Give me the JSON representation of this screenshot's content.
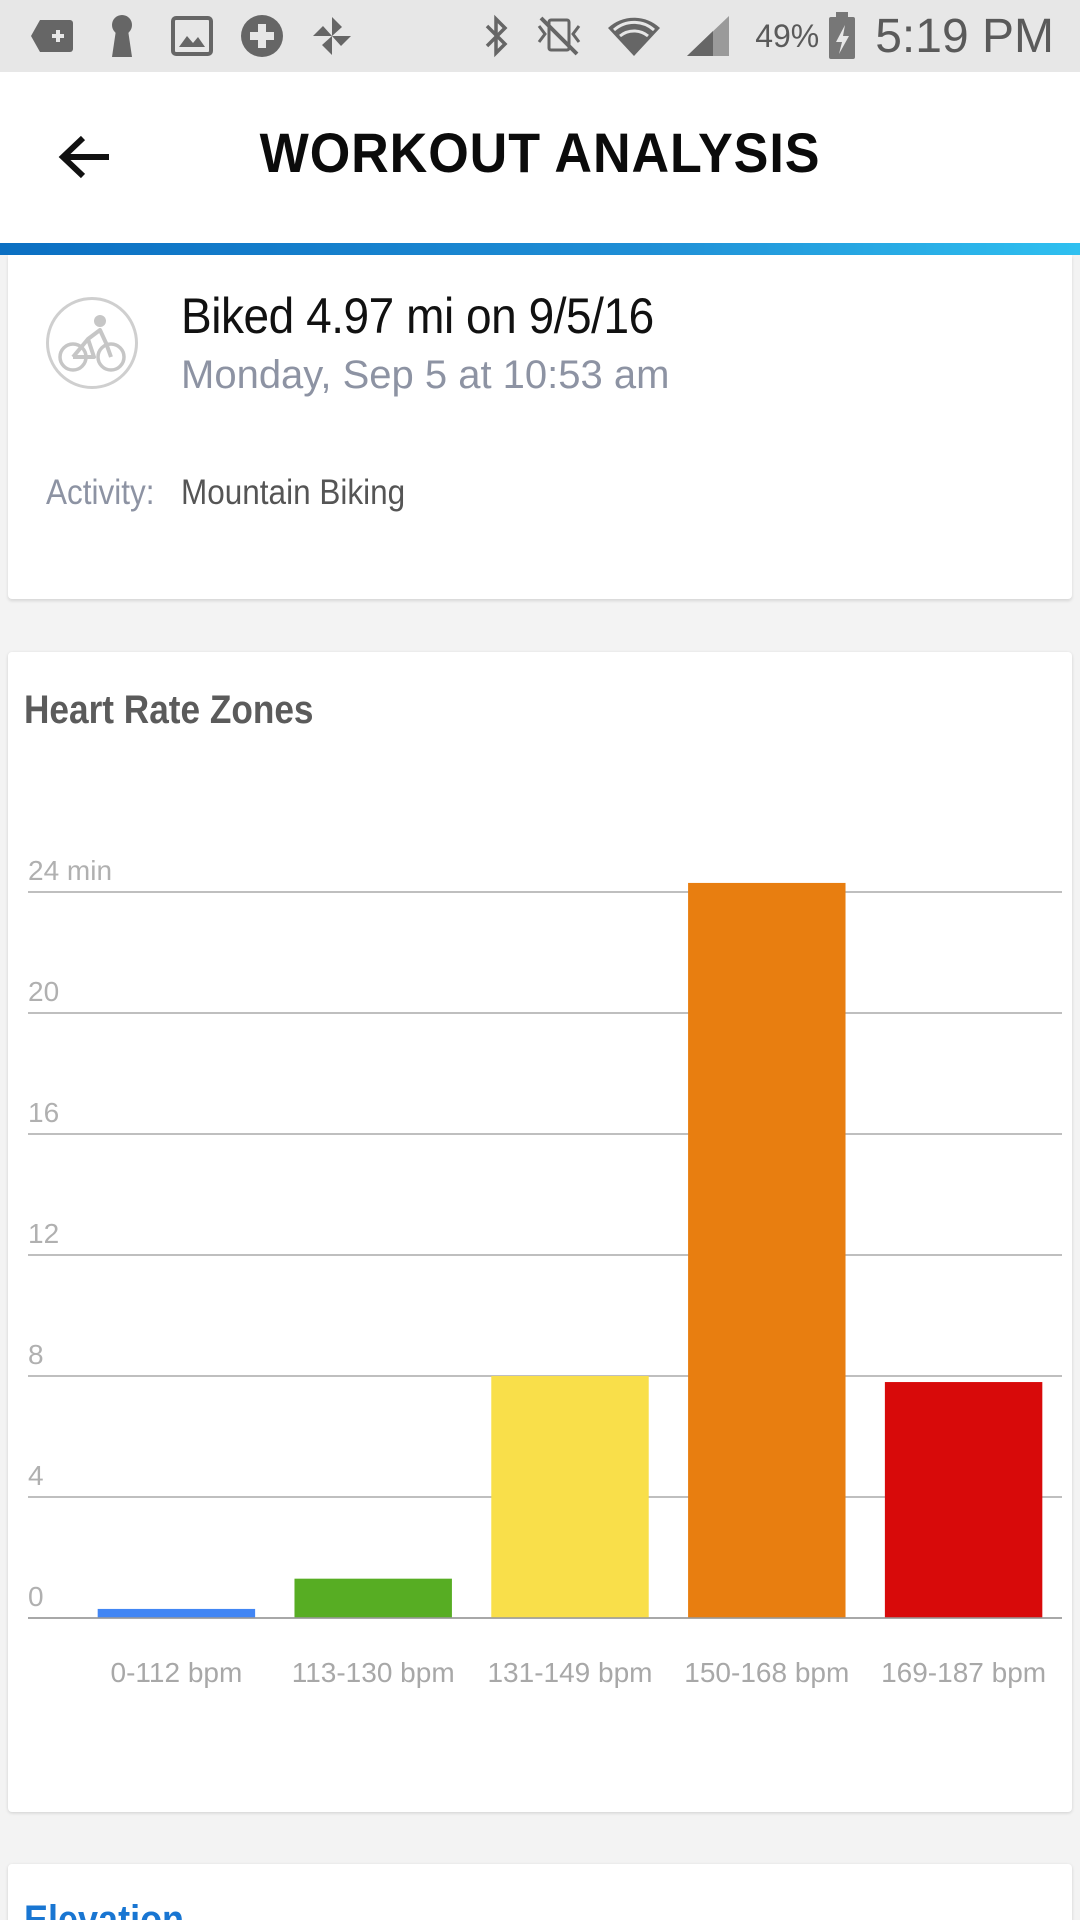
{
  "status_bar": {
    "left_icons": [
      "add-box-icon",
      "keyhole-icon",
      "image-icon",
      "plus-circle-icon",
      "pinwheel-icon"
    ],
    "right_icons": [
      "bluetooth-icon",
      "vibrate-off-icon",
      "wifi-icon",
      "signal-icon"
    ],
    "battery_percent": "49%",
    "time": "5:19 PM"
  },
  "header": {
    "title": "WORKOUT ANALYSIS",
    "back_icon": "arrow-left-icon",
    "accent_colors": [
      "#0b6fc2",
      "#2fc0f0"
    ]
  },
  "summary": {
    "title": "Biked 4.97 mi on 9/5/16",
    "subtitle": "Monday, Sep 5 at 10:53 am",
    "activity_label": "Activity:",
    "activity_value": "Mountain Biking",
    "icon": "bike-icon"
  },
  "heart_rate_card": {
    "title": "Heart Rate Zones"
  },
  "chart_data": {
    "type": "bar",
    "title": "Heart Rate Zones",
    "categories": [
      "0-112 bpm",
      "113-130 bpm",
      "131-149 bpm",
      "150-168 bpm",
      "169-187 bpm"
    ],
    "values": [
      0.3,
      1.3,
      8.0,
      24.3,
      7.8
    ],
    "colors": [
      "#4286f4",
      "#57ad23",
      "#f9df4a",
      "#e87e10",
      "#d80a0a"
    ],
    "yticks": [
      "0",
      "4",
      "8",
      "12",
      "16",
      "20",
      "24 min"
    ],
    "ylim": [
      0,
      24
    ],
    "grid": true
  },
  "elevation_card": {
    "title": "Elevation"
  }
}
